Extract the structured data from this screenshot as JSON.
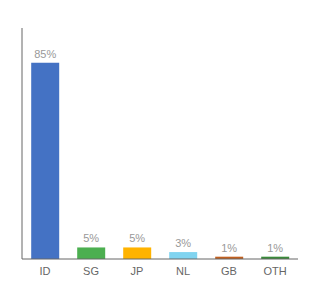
{
  "chart_data": {
    "type": "bar",
    "categories": [
      "ID",
      "SG",
      "JP",
      "NL",
      "GB",
      "OTH"
    ],
    "values": [
      85,
      5,
      5,
      3,
      1,
      1
    ],
    "value_labels": [
      "85%",
      "5%",
      "5%",
      "3%",
      "1%",
      "1%"
    ],
    "colors": [
      "#4472c4",
      "#4caf50",
      "#ffb300",
      "#80d4f0",
      "#c06020",
      "#3a8a3a"
    ],
    "ylim": [
      0,
      100
    ],
    "grid": false,
    "data_labels": true,
    "tick_labels": "x"
  }
}
